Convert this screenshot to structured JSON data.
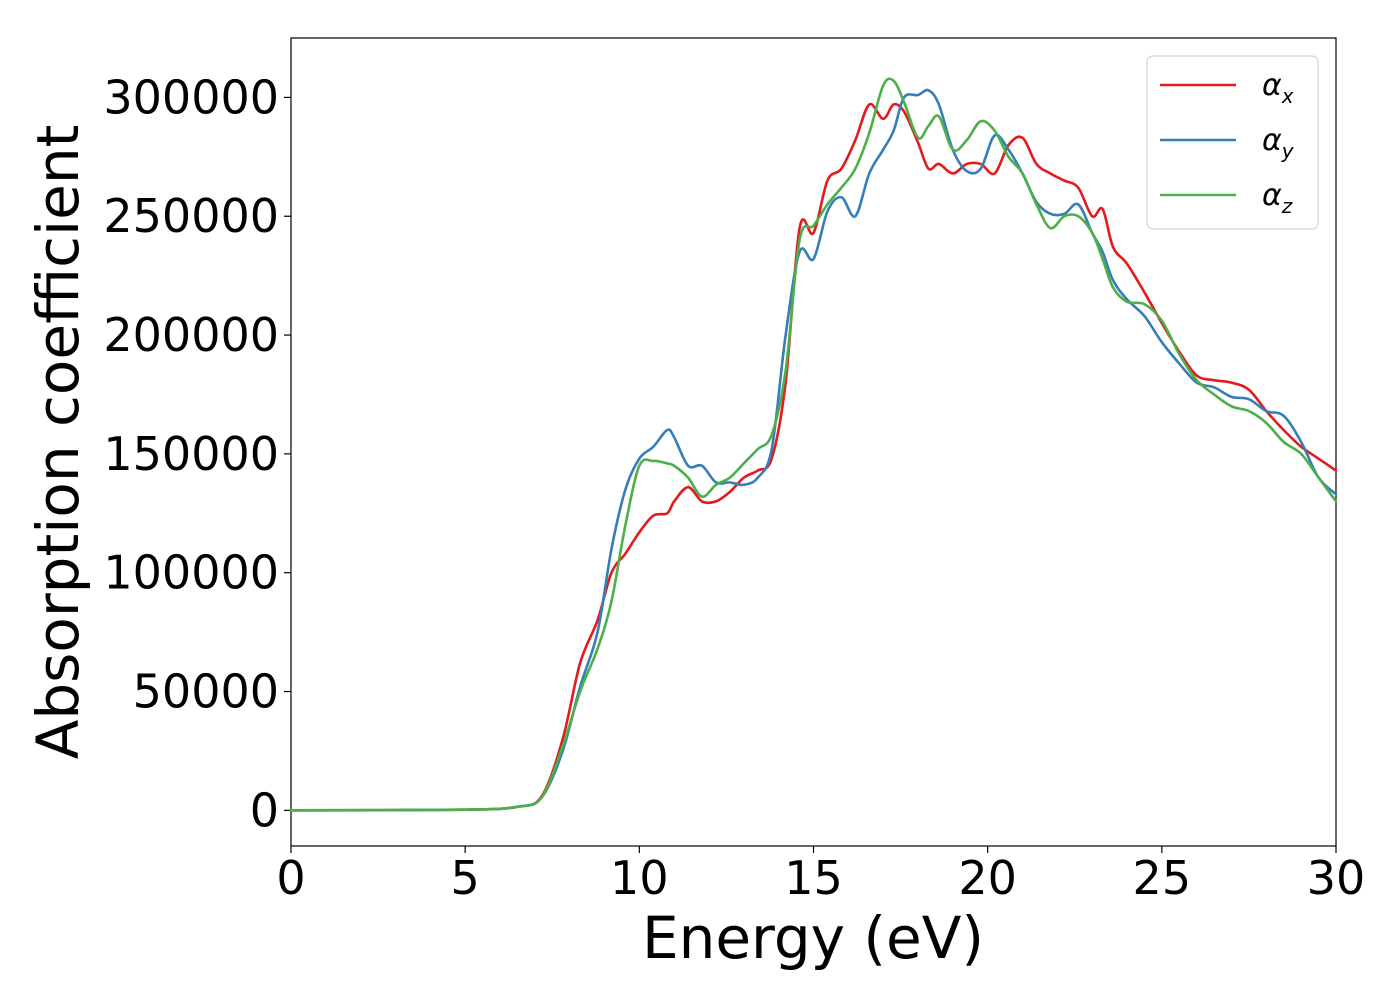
{
  "chart_data": {
    "type": "line",
    "xlabel": "Energy (eV)",
    "ylabel": "Absorption coefficient",
    "xlim": [
      0,
      30
    ],
    "ylim": [
      -15000,
      325000
    ],
    "xticks": [
      0,
      5,
      10,
      15,
      20,
      25,
      30
    ],
    "xtick_labels": [
      "0",
      "5",
      "10",
      "15",
      "20",
      "25",
      "30"
    ],
    "yticks": [
      0,
      50000,
      100000,
      150000,
      200000,
      250000,
      300000
    ],
    "ytick_labels": [
      "0",
      "50000",
      "100000",
      "150000",
      "200000",
      "250000",
      "300000"
    ],
    "grid": false,
    "legend_position": "top-right",
    "series": [
      {
        "name": "α",
        "subscript": "x",
        "color": "#e41a1c",
        "x": [
          0,
          5,
          6.5,
          7.2,
          7.8,
          8.3,
          8.8,
          9.2,
          9.6,
          10.0,
          10.4,
          10.8,
          11.0,
          11.4,
          11.8,
          12.2,
          12.6,
          13.0,
          13.4,
          13.8,
          14.2,
          14.6,
          15.0,
          15.4,
          15.8,
          16.2,
          16.6,
          17.0,
          17.3,
          17.6,
          18.0,
          18.3,
          18.6,
          19.0,
          19.4,
          19.8,
          20.2,
          20.6,
          21.0,
          21.4,
          21.8,
          22.2,
          22.6,
          23.0,
          23.3,
          23.6,
          24.0,
          24.5,
          25.0,
          25.5,
          26.0,
          26.5,
          27.0,
          27.5,
          28.0,
          28.5,
          29.0,
          29.5,
          30.0
        ],
        "values": [
          0,
          300,
          1500,
          6000,
          30000,
          62000,
          80000,
          100000,
          108000,
          117000,
          124000,
          125000,
          130000,
          136000,
          130000,
          130000,
          134000,
          140000,
          143000,
          148000,
          180000,
          245000,
          243000,
          265000,
          270000,
          282000,
          297000,
          291000,
          297000,
          294000,
          281000,
          270000,
          272000,
          268000,
          272000,
          272000,
          268000,
          280000,
          283000,
          272000,
          268000,
          265000,
          262000,
          250000,
          253000,
          237000,
          230000,
          218000,
          205000,
          193000,
          183000,
          181000,
          180000,
          177000,
          168000,
          160000,
          153000,
          148000,
          143000
        ]
      },
      {
        "name": "α",
        "subscript": "y",
        "color": "#377eb8",
        "x": [
          0,
          5,
          6.5,
          7.2,
          7.8,
          8.3,
          8.8,
          9.2,
          9.6,
          10.0,
          10.4,
          10.8,
          11.0,
          11.4,
          11.8,
          12.2,
          12.6,
          13.0,
          13.4,
          13.8,
          14.2,
          14.6,
          15.0,
          15.4,
          15.8,
          16.2,
          16.6,
          17.0,
          17.3,
          17.6,
          18.0,
          18.3,
          18.6,
          19.0,
          19.4,
          19.8,
          20.2,
          20.6,
          21.0,
          21.4,
          21.8,
          22.2,
          22.6,
          23.0,
          23.3,
          23.6,
          24.0,
          24.5,
          25.0,
          25.5,
          26.0,
          26.5,
          27.0,
          27.5,
          28.0,
          28.5,
          29.0,
          29.5,
          30.0
        ],
        "values": [
          0,
          300,
          1500,
          5500,
          25000,
          52000,
          75000,
          110000,
          135000,
          148000,
          153000,
          160000,
          157000,
          145000,
          145000,
          138000,
          138000,
          137000,
          140000,
          152000,
          200000,
          235000,
          232000,
          252000,
          258000,
          250000,
          268000,
          278000,
          286000,
          300000,
          301000,
          303000,
          297000,
          278000,
          269000,
          270000,
          284000,
          278000,
          268000,
          256000,
          251000,
          251000,
          255000,
          243000,
          235000,
          223000,
          215000,
          208000,
          197000,
          188000,
          180000,
          178000,
          174000,
          173000,
          168000,
          166000,
          155000,
          140000,
          133000
        ]
      },
      {
        "name": "α",
        "subscript": "z",
        "color": "#4daf4a",
        "x": [
          0,
          5,
          6.5,
          7.2,
          7.8,
          8.3,
          8.8,
          9.2,
          9.6,
          10.0,
          10.4,
          10.8,
          11.0,
          11.4,
          11.8,
          12.2,
          12.6,
          13.0,
          13.4,
          13.8,
          14.2,
          14.6,
          15.0,
          15.4,
          15.8,
          16.2,
          16.6,
          17.0,
          17.3,
          17.6,
          18.0,
          18.3,
          18.6,
          19.0,
          19.4,
          19.8,
          20.2,
          20.6,
          21.0,
          21.4,
          21.8,
          22.2,
          22.6,
          23.0,
          23.3,
          23.6,
          24.0,
          24.5,
          25.0,
          25.5,
          26.0,
          26.5,
          27.0,
          27.5,
          28.0,
          28.5,
          29.0,
          29.5,
          30.0
        ],
        "values": [
          0,
          300,
          1500,
          5500,
          27000,
          50000,
          68000,
          88000,
          120000,
          145000,
          147000,
          146000,
          145000,
          140000,
          132000,
          137000,
          140000,
          146000,
          152000,
          158000,
          185000,
          240000,
          246000,
          255000,
          262000,
          270000,
          285000,
          305000,
          307000,
          298000,
          283000,
          288000,
          292000,
          278000,
          282000,
          290000,
          286000,
          275000,
          268000,
          255000,
          245000,
          250000,
          250000,
          243000,
          232000,
          220000,
          214000,
          213000,
          206000,
          192000,
          181000,
          175000,
          170000,
          168000,
          163000,
          155000,
          150000,
          140000,
          130000
        ]
      }
    ]
  }
}
